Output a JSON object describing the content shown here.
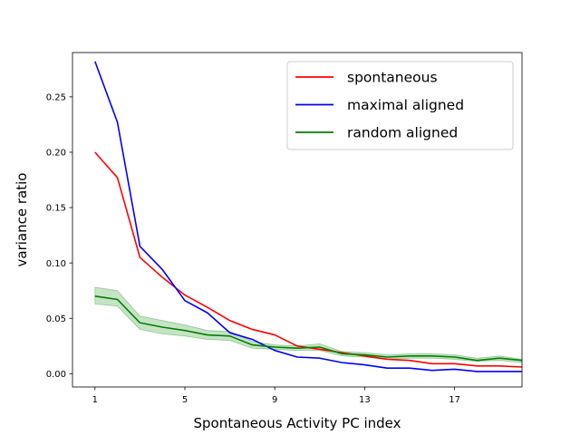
{
  "chart_data": {
    "type": "line",
    "xlabel": "Spontaneous Activity PC index",
    "ylabel": "variance ratio",
    "xlim": [
      0.0,
      20.0
    ],
    "ylim": [
      -0.012,
      0.29
    ],
    "xticks": [
      1,
      5,
      9,
      13,
      17
    ],
    "yticks": [
      0.0,
      0.05,
      0.1,
      0.15,
      0.2,
      0.25
    ],
    "ytick_labels": [
      "0.00",
      "0.05",
      "0.10",
      "0.15",
      "0.20",
      "0.25"
    ],
    "grid": false,
    "legend_position": "top-right",
    "x": [
      1,
      2,
      3,
      4,
      5,
      6,
      7,
      8,
      9,
      10,
      11,
      12,
      13,
      14,
      15,
      16,
      17,
      18,
      19,
      20
    ],
    "series": [
      {
        "name": "spontaneous",
        "color": "#ff0000",
        "values": [
          0.2,
          0.177,
          0.105,
          0.087,
          0.071,
          0.06,
          0.048,
          0.04,
          0.035,
          0.025,
          0.022,
          0.019,
          0.016,
          0.013,
          0.012,
          0.009,
          0.009,
          0.007,
          0.007,
          0.006
        ]
      },
      {
        "name": "maximal aligned",
        "color": "#0000ff",
        "values": [
          0.282,
          0.227,
          0.115,
          0.094,
          0.066,
          0.055,
          0.037,
          0.031,
          0.021,
          0.015,
          0.014,
          0.01,
          0.008,
          0.005,
          0.005,
          0.003,
          0.004,
          0.002,
          0.002,
          0.002
        ]
      },
      {
        "name": "random aligned",
        "color": "#008000",
        "band_color": "#008000",
        "values": [
          0.07,
          0.067,
          0.046,
          0.042,
          0.039,
          0.035,
          0.034,
          0.026,
          0.024,
          0.023,
          0.024,
          0.018,
          0.017,
          0.015,
          0.016,
          0.016,
          0.015,
          0.012,
          0.014,
          0.012
        ],
        "lower": [
          0.063,
          0.061,
          0.04,
          0.036,
          0.034,
          0.031,
          0.03,
          0.023,
          0.022,
          0.021,
          0.021,
          0.016,
          0.015,
          0.013,
          0.014,
          0.014,
          0.013,
          0.011,
          0.012,
          0.01
        ],
        "upper": [
          0.078,
          0.075,
          0.052,
          0.048,
          0.044,
          0.039,
          0.038,
          0.029,
          0.026,
          0.025,
          0.027,
          0.02,
          0.019,
          0.017,
          0.018,
          0.018,
          0.017,
          0.014,
          0.016,
          0.013
        ]
      }
    ]
  }
}
